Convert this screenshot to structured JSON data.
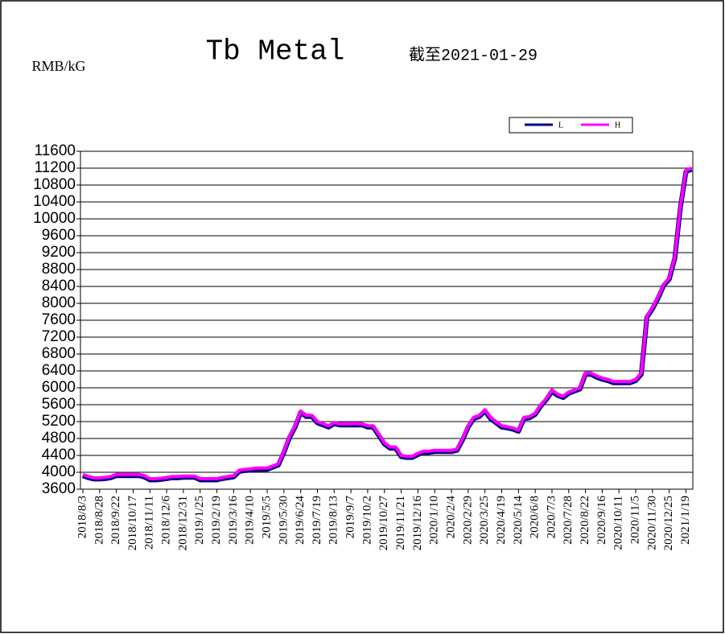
{
  "chart_data": {
    "type": "line",
    "title": "Tb Metal",
    "subtitle": "截至2021-01-29",
    "y_label": "RMB/kG",
    "categories": [
      "2018/8/3",
      null,
      null,
      "2018/8/28",
      null,
      null,
      "2018/9/22",
      null,
      null,
      "2018/10/17",
      null,
      null,
      "2018/11/11",
      null,
      null,
      "2018/12/6",
      null,
      null,
      "2018/12/31",
      null,
      null,
      "2019/1/25",
      null,
      null,
      "2019/2/19",
      null,
      null,
      "2019/3/16",
      null,
      null,
      "2019/4/10",
      null,
      null,
      "2019/5/5",
      null,
      null,
      "2019/5/30",
      null,
      null,
      "2019/6/24",
      null,
      null,
      "2019/7/19",
      null,
      null,
      "2019/8/13",
      null,
      null,
      "2019/9/7",
      null,
      null,
      "2019/10/2",
      null,
      null,
      "2019/10/27",
      null,
      null,
      "2019/11/21",
      null,
      null,
      "2019/12/16",
      null,
      null,
      "2020/1/10",
      null,
      null,
      "2020/2/4",
      null,
      null,
      "2020/2/29",
      null,
      null,
      "2020/3/25",
      null,
      null,
      "2020/4/19",
      null,
      null,
      "2020/5/14",
      null,
      null,
      "2020/6/8",
      null,
      null,
      "2020/7/3",
      null,
      null,
      "2020/7/28",
      null,
      null,
      "2020/8/22",
      null,
      null,
      "2020/9/16",
      null,
      null,
      "2020/10/11",
      null,
      null,
      "2020/11/5",
      null,
      null,
      "2020/11/30",
      null,
      null,
      "2020/12/25",
      null,
      null,
      "2021/1/19",
      null
    ],
    "series": [
      {
        "name": "L",
        "color": "#000080",
        "values": [
          3920,
          3870,
          3840,
          3840,
          3850,
          3870,
          3920,
          3920,
          3920,
          3920,
          3920,
          3890,
          3820,
          3820,
          3830,
          3850,
          3870,
          3870,
          3880,
          3880,
          3880,
          3820,
          3820,
          3820,
          3820,
          3850,
          3870,
          3890,
          4020,
          4040,
          4050,
          4070,
          4070,
          4070,
          4120,
          4170,
          4470,
          4820,
          5070,
          5420,
          5320,
          5320,
          5170,
          5120,
          5070,
          5150,
          5120,
          5120,
          5120,
          5120,
          5120,
          5070,
          5070,
          4870,
          4670,
          4570,
          4570,
          4370,
          4350,
          4350,
          4420,
          4470,
          4470,
          4490,
          4490,
          4490,
          4490,
          4520,
          4770,
          5070,
          5270,
          5320,
          5450,
          5270,
          5170,
          5070,
          5050,
          5020,
          4970,
          5270,
          5290,
          5370,
          5570,
          5720,
          5920,
          5820,
          5770,
          5870,
          5920,
          5970,
          6320,
          6320,
          6250,
          6200,
          6170,
          6120,
          6120,
          6120,
          6120,
          6170,
          6320,
          7670,
          7870,
          8120,
          8420,
          8570,
          9070,
          10270,
          11120,
          11170
        ]
      },
      {
        "name": "H",
        "color": "#ff00ff",
        "values": [
          3950,
          3900,
          3870,
          3870,
          3880,
          3900,
          3950,
          3950,
          3950,
          3950,
          3950,
          3920,
          3850,
          3850,
          3860,
          3880,
          3900,
          3900,
          3910,
          3910,
          3910,
          3850,
          3850,
          3850,
          3850,
          3880,
          3900,
          3920,
          4050,
          4070,
          4080,
          4100,
          4100,
          4100,
          4150,
          4200,
          4500,
          4850,
          5100,
          5450,
          5350,
          5350,
          5200,
          5150,
          5100,
          5180,
          5150,
          5150,
          5150,
          5150,
          5150,
          5100,
          5100,
          4900,
          4700,
          4600,
          4600,
          4400,
          4380,
          4380,
          4450,
          4500,
          4500,
          4520,
          4520,
          4520,
          4520,
          4550,
          4800,
          5100,
          5300,
          5350,
          5480,
          5300,
          5200,
          5100,
          5080,
          5050,
          5000,
          5300,
          5320,
          5400,
          5600,
          5750,
          5950,
          5850,
          5800,
          5900,
          5950,
          6000,
          6350,
          6350,
          6280,
          6230,
          6200,
          6150,
          6150,
          6150,
          6150,
          6200,
          6350,
          7700,
          7900,
          8150,
          8450,
          8600,
          9100,
          10300,
          11150,
          11200
        ]
      }
    ],
    "ylim": [
      3600,
      11600
    ],
    "yticks": [
      3600,
      4000,
      4400,
      4800,
      5200,
      5600,
      6000,
      6400,
      6800,
      7200,
      7600,
      8000,
      8400,
      8800,
      9200,
      9600,
      10000,
      10400,
      10800,
      11200,
      11600
    ],
    "grid": true
  }
}
